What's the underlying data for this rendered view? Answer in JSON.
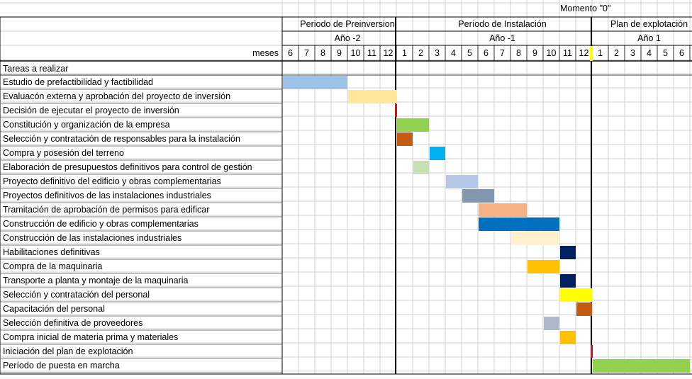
{
  "moment_label": "Momento \"0\"",
  "row_header": "meses",
  "tasks_header": "Tareas a realizar",
  "chart_data": {
    "type": "gantt",
    "periods": [
      {
        "label": "Periodo de Preinversion",
        "years": [
          "Año -2"
        ]
      },
      {
        "label": "Período de Instalación",
        "years": [
          "Año -1"
        ]
      },
      {
        "label": "Plan de explotación",
        "years": [
          "Año 1"
        ]
      }
    ],
    "year_months": [
      {
        "year": "Año -2",
        "months": [
          6,
          7,
          8,
          9,
          10,
          11,
          12
        ]
      },
      {
        "year": "Año -1",
        "months": [
          1,
          2,
          3,
          4,
          5,
          6,
          7,
          8,
          9,
          10,
          11,
          12
        ]
      },
      {
        "year": "Año 1",
        "months": [
          1,
          2,
          3,
          4,
          5,
          6
        ]
      }
    ],
    "milestone": "Momento \"0\"",
    "tasks": [
      {
        "name": "Estudio de prefactibilidad y factibilidad",
        "start_month_index": 0,
        "span_months": 4,
        "color": "#9dc3e6"
      },
      {
        "name": "Evaluacón externa y aprobación del proyecto de inversión",
        "start_month_index": 4,
        "span_months": 3,
        "color": "#ffe699"
      },
      {
        "name": "Decisión de ejecutar el proyecto de inversión",
        "milestone_after_month_index": 6,
        "color": "#ff0000"
      },
      {
        "name": "Constitución  y organización de la empresa",
        "start_month_index": 7,
        "span_months": 2,
        "color": "#92d050"
      },
      {
        "name": "Selección y contratación de responsables para la instalación",
        "start_month_index": 7,
        "span_months": 1,
        "color": "#c55a11"
      },
      {
        "name": "Compra y posesión del terreno",
        "start_month_index": 9,
        "span_months": 1,
        "color": "#00b0f0"
      },
      {
        "name": "Elaboración de presupuestos definitivos para control de gestión",
        "start_month_index": 8,
        "span_months": 1,
        "color": "#c5e0b4"
      },
      {
        "name": "Proyecto definitivo del edificio y obras complementarias",
        "start_month_index": 10,
        "span_months": 2,
        "color": "#b4c7e7"
      },
      {
        "name": "Proyectos definitivos de las instalaciones industriales",
        "start_month_index": 11,
        "span_months": 2,
        "color": "#8497b0"
      },
      {
        "name": "Tramitación de aprobación de permisos para edificar",
        "start_month_index": 12,
        "span_months": 3,
        "color": "#f4b183"
      },
      {
        "name": "Construcción de edificio y obras complementarias",
        "start_month_index": 12,
        "span_months": 5,
        "color": "#0070c0"
      },
      {
        "name": "Construcción de las instalaciones industriales",
        "start_month_index": 14,
        "span_months": 3,
        "color": "#fff2cc"
      },
      {
        "name": "Habilitaciones definitivas",
        "start_month_index": 17,
        "span_months": 1,
        "color": "#002060"
      },
      {
        "name": "Compra de la maquinaria",
        "start_month_index": 15,
        "span_months": 2,
        "color": "#ffc000"
      },
      {
        "name": "Transporte a planta y montaje de la maquinaria",
        "start_month_index": 17,
        "span_months": 1,
        "color": "#002060"
      },
      {
        "name": "Selección y contratación del personal",
        "start_month_index": 17,
        "span_months": 2,
        "color": "#ffff00"
      },
      {
        "name": "Capacitación del personal",
        "start_month_index": 18,
        "span_months": 1,
        "color": "#c55a11"
      },
      {
        "name": "Selección definitiva de proveedores",
        "start_month_index": 16,
        "span_months": 1,
        "color": "#adb9ca"
      },
      {
        "name": "Compra inicial de materia prima y materiales",
        "start_month_index": 17,
        "span_months": 1,
        "color": "#ffc000"
      },
      {
        "name": "Iniciación del plan de explotación",
        "milestone_after_month_index": 18,
        "color": "#ff0000"
      },
      {
        "name": "Período de puesta en marcha",
        "start_month_index": 19,
        "span_months": 6,
        "color": "#92d050"
      }
    ]
  }
}
